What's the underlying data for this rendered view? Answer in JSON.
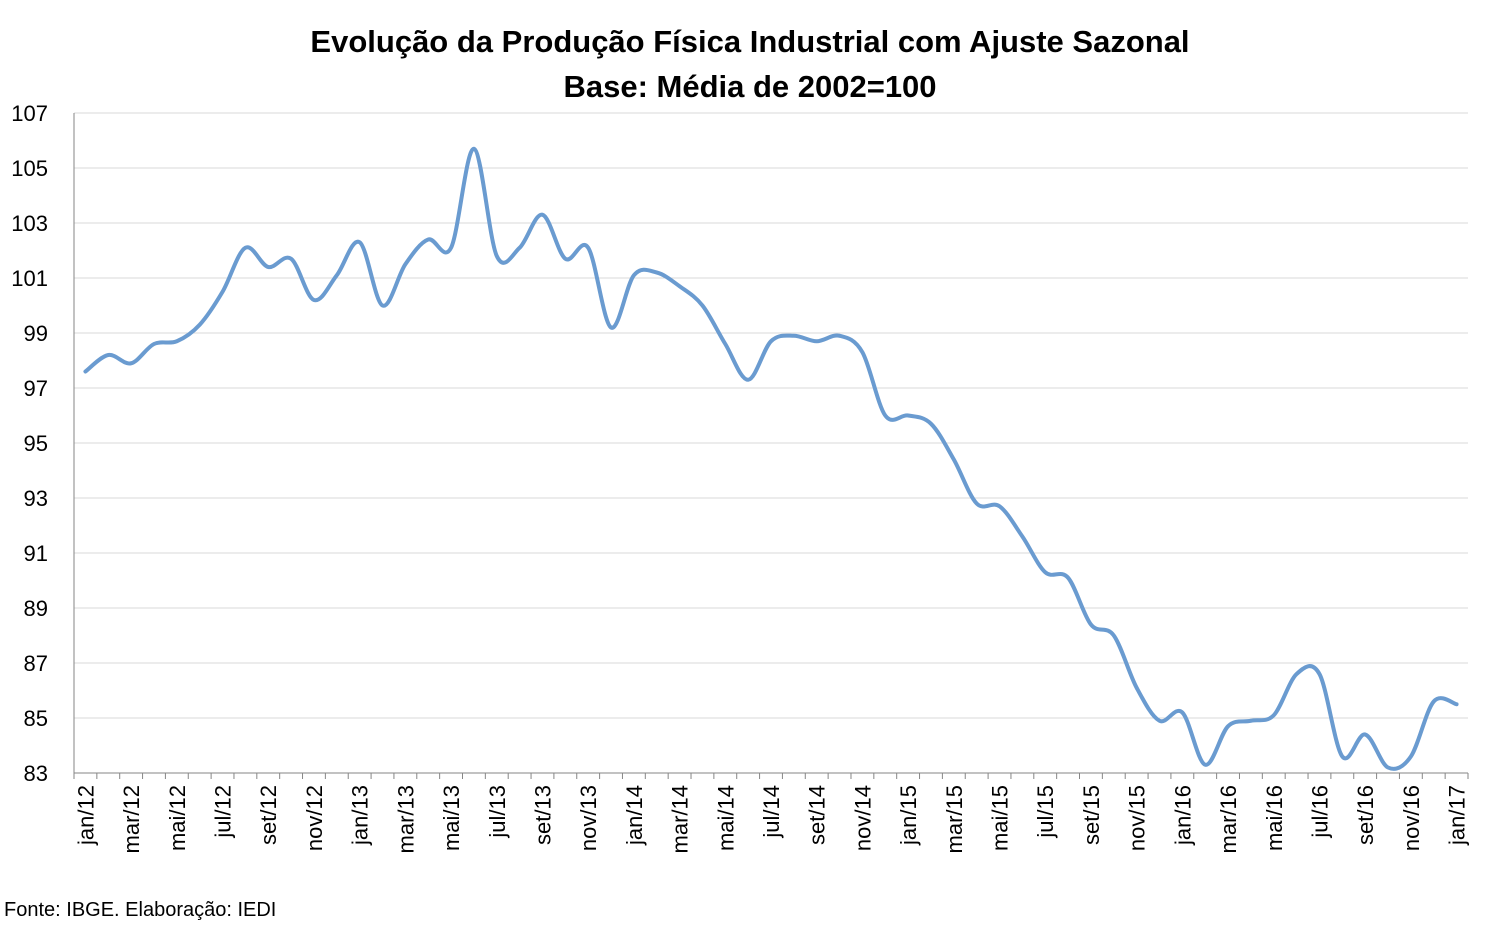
{
  "chart_data": {
    "type": "line",
    "title": "Evolução da Produção Física Industrial com Ajuste Sazonal",
    "subtitle": "Base: Média de 2002=100",
    "xlabel": "",
    "ylabel": "",
    "ylim": [
      83,
      107
    ],
    "yticks": [
      "83",
      "85",
      "87",
      "89",
      "91",
      "93",
      "95",
      "97",
      "99",
      "101",
      "103",
      "105",
      "107"
    ],
    "grid": true,
    "legend": "none",
    "line_color": "#6a9bd0",
    "x": [
      "jan/12",
      "fev/12",
      "mar/12",
      "abr/12",
      "mai/12",
      "jun/12",
      "jul/12",
      "ago/12",
      "set/12",
      "out/12",
      "nov/12",
      "dez/12",
      "jan/13",
      "fev/13",
      "mar/13",
      "abr/13",
      "mai/13",
      "jun/13",
      "jul/13",
      "ago/13",
      "set/13",
      "out/13",
      "nov/13",
      "dez/13",
      "jan/14",
      "fev/14",
      "mar/14",
      "abr/14",
      "mai/14",
      "jun/14",
      "jul/14",
      "ago/14",
      "set/14",
      "out/14",
      "nov/14",
      "dez/14",
      "jan/15",
      "fev/15",
      "mar/15",
      "abr/15",
      "mai/15",
      "jun/15",
      "jul/15",
      "ago/15",
      "set/15",
      "out/15",
      "nov/15",
      "dez/15",
      "jan/16",
      "fev/16",
      "mar/16",
      "abr/16",
      "mai/16",
      "jun/16",
      "jul/16",
      "ago/16",
      "set/16",
      "out/16",
      "nov/16",
      "dez/16",
      "jan/17"
    ],
    "xtick_labels": [
      "jan/12",
      "mar/12",
      "mai/12",
      "jul/12",
      "set/12",
      "nov/12",
      "jan/13",
      "mar/13",
      "mai/13",
      "jul/13",
      "set/13",
      "nov/13",
      "jan/14",
      "mar/14",
      "mai/14",
      "jul/14",
      "set/14",
      "nov/14",
      "jan/15",
      "mar/15",
      "mai/15",
      "jul/15",
      "set/15",
      "nov/15",
      "jan/16",
      "mar/16",
      "mai/16",
      "jul/16",
      "set/16",
      "nov/16",
      "jan/17"
    ],
    "series": [
      {
        "values": [
          97.6,
          98.2,
          97.9,
          98.6,
          98.7,
          99.3,
          100.5,
          102.1,
          101.4,
          101.7,
          100.2,
          101.1,
          102.3,
          100.0,
          101.5,
          102.4,
          102.1,
          105.7,
          101.8,
          102.1,
          103.3,
          101.7,
          102.1,
          99.2,
          101.1,
          101.2,
          100.7,
          100.0,
          98.6,
          97.3,
          98.7,
          98.9,
          98.7,
          98.9,
          98.3,
          96.0,
          96.0,
          95.7,
          94.4,
          92.8,
          92.7,
          91.6,
          90.3,
          90.1,
          88.4,
          88.0,
          86.1,
          84.9,
          85.2,
          83.3,
          84.7,
          84.9,
          85.1,
          86.6,
          86.6,
          83.6,
          84.4,
          83.2,
          83.6,
          85.6,
          85.5
        ]
      }
    ]
  },
  "footer": {
    "source": "Fonte: IBGE. Elaboração: IEDI"
  }
}
